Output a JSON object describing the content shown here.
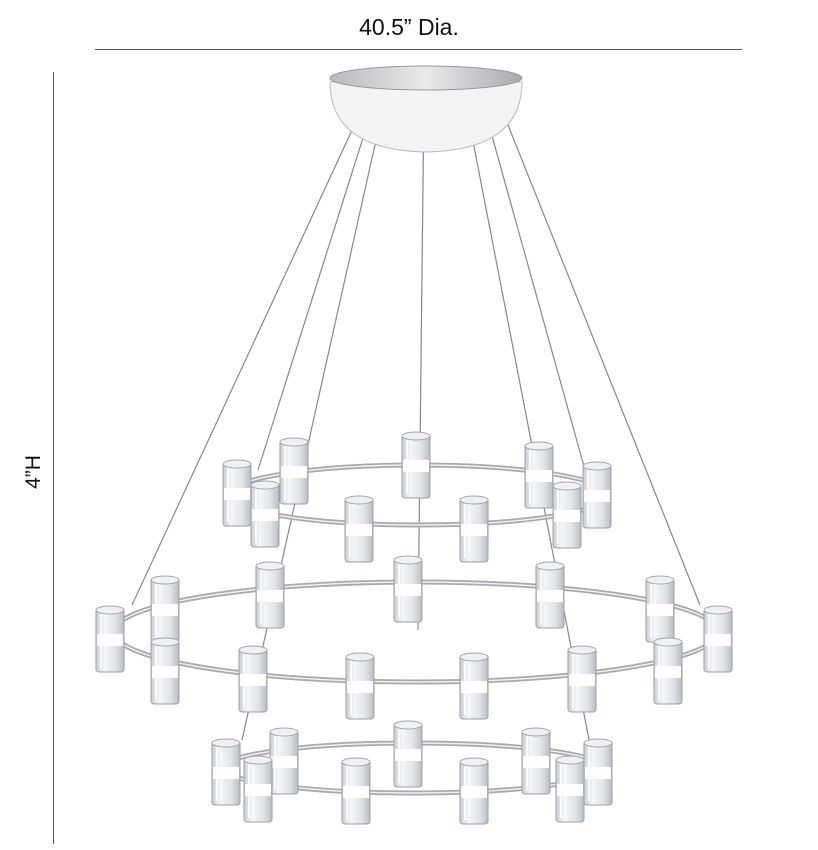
{
  "dimensions": {
    "diameter_label": "40.5” Dia.",
    "height_label": "4”H"
  },
  "product": {
    "finish_color": "#c8c8cc",
    "glass_color": "#e6e9ec",
    "rings": 3
  }
}
